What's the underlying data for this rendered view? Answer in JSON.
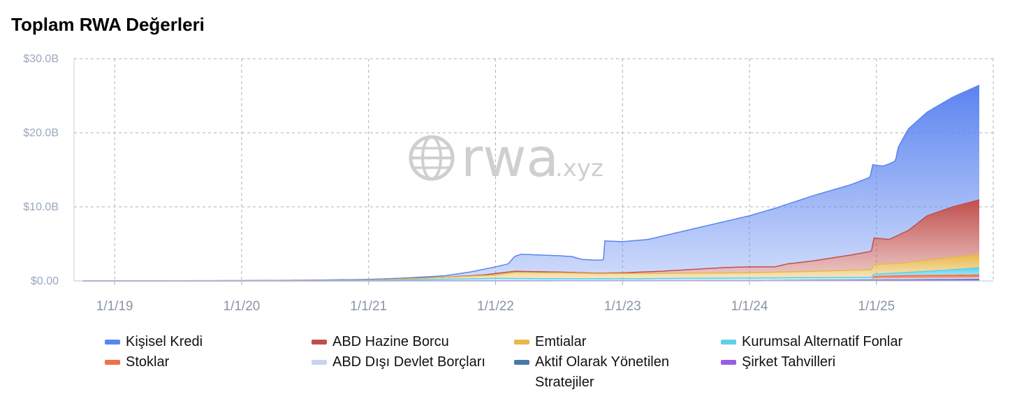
{
  "title": "Toplam RWA Değerleri",
  "watermark": {
    "brand": "rwa",
    "suffix": ".xyz",
    "icon": "globe-icon"
  },
  "colors": {
    "grid": "#b0b0b0",
    "axis": "#c8d0dc",
    "personal_credit": "#5b84f0",
    "us_treasury": "#c0504d",
    "commodities": "#e8b84b",
    "institutional_funds": "#5fd0ea",
    "stocks": "#f0704a",
    "non_us_gov": "#c8d4f0",
    "active_strategies": "#4a78a8",
    "corporate_bonds": "#9a5ce0"
  },
  "chart_data": {
    "type": "area",
    "stacked": true,
    "title": "Toplam RWA Değerleri",
    "xlabel": "",
    "ylabel": "",
    "y_ticks": [
      "$0.00",
      "$10.0B",
      "$20.0B",
      "$30.0B"
    ],
    "y_tick_values": [
      0,
      10,
      20,
      30
    ],
    "ylim": [
      0,
      30
    ],
    "x_ticks": [
      "1/1/19",
      "1/1/20",
      "1/1/21",
      "1/1/22",
      "1/1/23",
      "1/1/24",
      "1/1/25"
    ],
    "x_tick_values": [
      2019.0,
      2020.0,
      2021.0,
      2022.0,
      2023.0,
      2024.0,
      2025.0
    ],
    "xlim": [
      2018.68,
      2025.92
    ],
    "grid": true,
    "legend_position": "bottom",
    "series": [
      {
        "name": "Kişisel Kredi",
        "color": "#5b84f0",
        "points": [
          [
            2018.75,
            0.02
          ],
          [
            2019.5,
            0.03
          ],
          [
            2020.0,
            0.05
          ],
          [
            2020.5,
            0.1
          ],
          [
            2021.0,
            0.2
          ],
          [
            2021.3,
            0.4
          ],
          [
            2021.6,
            0.7
          ],
          [
            2021.8,
            1.2
          ],
          [
            2022.0,
            1.9
          ],
          [
            2022.1,
            2.3
          ],
          [
            2022.15,
            3.3
          ],
          [
            2022.2,
            3.6
          ],
          [
            2022.5,
            3.4
          ],
          [
            2022.6,
            3.3
          ],
          [
            2022.68,
            2.9
          ],
          [
            2022.8,
            2.8
          ],
          [
            2022.85,
            2.8
          ],
          [
            2022.86,
            5.4
          ],
          [
            2023.0,
            5.3
          ],
          [
            2023.2,
            5.6
          ],
          [
            2023.5,
            6.8
          ],
          [
            2023.8,
            8.0
          ],
          [
            2024.0,
            8.8
          ],
          [
            2024.2,
            9.8
          ],
          [
            2024.5,
            11.5
          ],
          [
            2024.8,
            13.0
          ],
          [
            2024.95,
            14.0
          ],
          [
            2024.97,
            15.7
          ],
          [
            2025.05,
            15.5
          ],
          [
            2025.1,
            15.8
          ],
          [
            2025.15,
            16.2
          ],
          [
            2025.17,
            18.0
          ],
          [
            2025.25,
            20.5
          ],
          [
            2025.4,
            22.8
          ],
          [
            2025.6,
            24.8
          ],
          [
            2025.82,
            26.5
          ]
        ]
      },
      {
        "name": "ABD Hazine Borcu",
        "color": "#c0504d",
        "points": [
          [
            2018.75,
            0.0
          ],
          [
            2020.0,
            0.02
          ],
          [
            2021.0,
            0.1
          ],
          [
            2021.3,
            0.3
          ],
          [
            2021.6,
            0.5
          ],
          [
            2021.9,
            0.8
          ],
          [
            2022.15,
            1.3
          ],
          [
            2022.5,
            1.2
          ],
          [
            2022.8,
            1.05
          ],
          [
            2023.0,
            1.1
          ],
          [
            2023.3,
            1.3
          ],
          [
            2023.6,
            1.6
          ],
          [
            2023.8,
            1.8
          ],
          [
            2024.0,
            1.9
          ],
          [
            2024.2,
            1.9
          ],
          [
            2024.3,
            2.3
          ],
          [
            2024.5,
            2.7
          ],
          [
            2024.8,
            3.5
          ],
          [
            2024.96,
            4.0
          ],
          [
            2024.98,
            5.8
          ],
          [
            2025.1,
            5.6
          ],
          [
            2025.25,
            6.8
          ],
          [
            2025.4,
            8.8
          ],
          [
            2025.6,
            10.0
          ],
          [
            2025.82,
            11.0
          ]
        ]
      },
      {
        "name": "Emtialar",
        "color": "#e8b84b",
        "points": [
          [
            2018.75,
            0.0
          ],
          [
            2020.5,
            0.05
          ],
          [
            2021.0,
            0.1
          ],
          [
            2021.5,
            0.4
          ],
          [
            2022.0,
            0.8
          ],
          [
            2022.15,
            1.15
          ],
          [
            2022.5,
            1.1
          ],
          [
            2022.8,
            1.0
          ],
          [
            2023.0,
            1.0
          ],
          [
            2023.5,
            1.05
          ],
          [
            2024.0,
            1.1
          ],
          [
            2024.5,
            1.3
          ],
          [
            2024.96,
            1.5
          ],
          [
            2024.98,
            2.2
          ],
          [
            2025.2,
            2.4
          ],
          [
            2025.5,
            3.0
          ],
          [
            2025.82,
            3.6
          ]
        ]
      },
      {
        "name": "Kurumsal Alternatif Fonlar",
        "color": "#5fd0ea",
        "points": [
          [
            2018.75,
            0.0
          ],
          [
            2021.0,
            0.05
          ],
          [
            2021.5,
            0.2
          ],
          [
            2022.0,
            0.35
          ],
          [
            2022.5,
            0.3
          ],
          [
            2023.0,
            0.3
          ],
          [
            2024.0,
            0.4
          ],
          [
            2024.96,
            0.5
          ],
          [
            2024.98,
            0.9
          ],
          [
            2025.2,
            1.1
          ],
          [
            2025.5,
            1.4
          ],
          [
            2025.82,
            1.8
          ]
        ]
      },
      {
        "name": "Stoklar",
        "color": "#f0704a",
        "points": [
          [
            2018.75,
            0.0
          ],
          [
            2024.9,
            0.05
          ],
          [
            2024.96,
            0.1
          ],
          [
            2024.98,
            0.6
          ],
          [
            2025.2,
            0.7
          ],
          [
            2025.5,
            0.75
          ],
          [
            2025.82,
            0.8
          ]
        ]
      },
      {
        "name": "ABD Dışı Devlet Borçları",
        "color": "#c8d4f0",
        "points": [
          [
            2018.75,
            0.0
          ],
          [
            2023.0,
            0.05
          ],
          [
            2024.0,
            0.1
          ],
          [
            2025.0,
            0.25
          ],
          [
            2025.82,
            0.4
          ]
        ]
      },
      {
        "name": "Aktif Olarak Yönetilen Stratejiler",
        "color": "#4a78a8",
        "points": [
          [
            2018.75,
            0.0
          ],
          [
            2024.0,
            0.02
          ],
          [
            2025.0,
            0.1
          ],
          [
            2025.82,
            0.2
          ]
        ]
      },
      {
        "name": "Şirket Tahvilleri",
        "color": "#9a5ce0",
        "points": [
          [
            2018.75,
            0.0
          ],
          [
            2024.0,
            0.01
          ],
          [
            2025.0,
            0.05
          ],
          [
            2025.82,
            0.1
          ]
        ]
      }
    ]
  },
  "legend": [
    {
      "label": "Kişisel Kredi",
      "color": "#5b84f0"
    },
    {
      "label": "ABD Hazine Borcu",
      "color": "#c0504d"
    },
    {
      "label": "Emtialar",
      "color": "#e8b84b"
    },
    {
      "label": "Kurumsal Alternatif Fonlar",
      "color": "#5fd0ea"
    },
    {
      "label": "Stoklar",
      "color": "#f0704a"
    },
    {
      "label": "ABD Dışı Devlet Borçları",
      "color": "#c8d4f0"
    },
    {
      "label": "Aktif Olarak Yönetilen Stratejiler",
      "color": "#4a78a8"
    },
    {
      "label": "Şirket Tahvilleri",
      "color": "#9a5ce0"
    }
  ]
}
